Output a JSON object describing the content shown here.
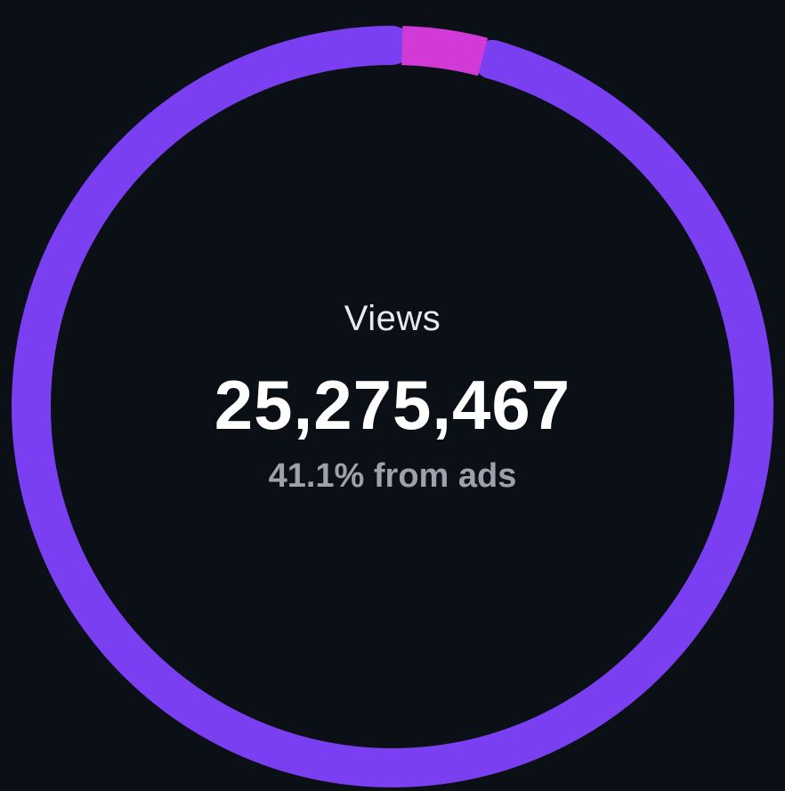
{
  "chart_data": {
    "type": "pie",
    "variant": "donut",
    "slices": [
      {
        "label": "",
        "value": 96.4,
        "color": "#7b3ff2"
      },
      {
        "label": "",
        "value": 3.6,
        "color": "#d23ad8"
      }
    ],
    "center": {
      "title": "Views",
      "value": "25,275,467",
      "subtitle": "41.1% from ads"
    }
  },
  "colors": {
    "background": "#0b0f16",
    "primary_ring": "#7b3ff2",
    "accent_ring": "#d23ad8",
    "title_text": "#e8e9ee",
    "value_text": "#ffffff",
    "subtitle_text": "#9ea1ab"
  }
}
